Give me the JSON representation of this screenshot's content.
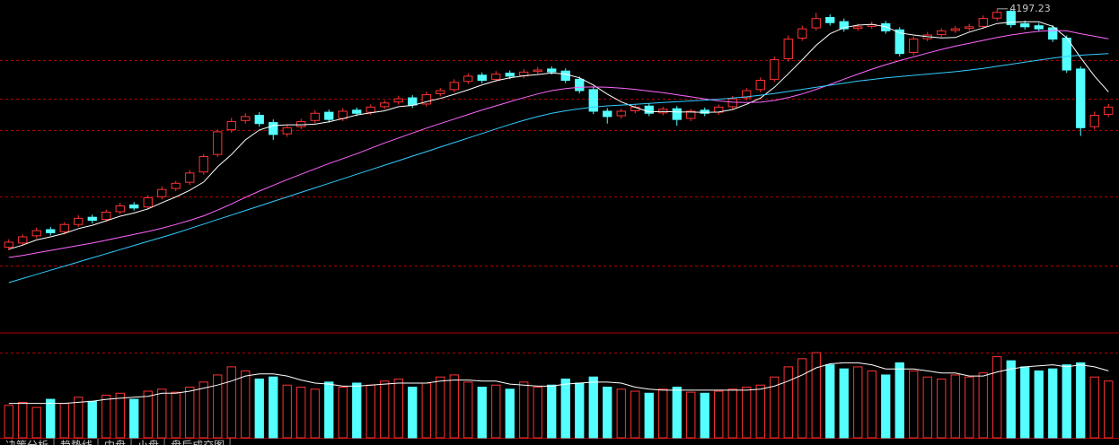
{
  "chart_data": {
    "type": "candlestick",
    "ylim": [
      2650,
      4240
    ],
    "ygrid": [
      3948,
      3761,
      3608,
      3286,
      2951
    ],
    "grid_color": "#b00000",
    "up_color": "#ff3232",
    "down_color": "#54ffff",
    "open": [
      3040,
      3060,
      3095,
      3125,
      3115,
      3150,
      3185,
      3175,
      3212,
      3245,
      3235,
      3285,
      3325,
      3355,
      3405,
      3490,
      3610,
      3655,
      3680,
      3645,
      3590,
      3625,
      3655,
      3695,
      3665,
      3705,
      3695,
      3722,
      3745,
      3765,
      3735,
      3785,
      3805,
      3845,
      3875,
      3855,
      3885,
      3872,
      3893,
      3905,
      3895,
      3855,
      3805,
      3700,
      3678,
      3702,
      3725,
      3692,
      3712,
      3665,
      3705,
      3695,
      3722,
      3765,
      3805,
      3855,
      3955,
      4055,
      4105,
      4155,
      4135,
      4102,
      4112,
      4125,
      4095,
      3985,
      4052,
      4072,
      4092,
      4102,
      4112,
      4152,
      4185,
      4125,
      4115,
      4105,
      4055,
      3905,
      3625,
      3685
    ],
    "high": [
      3078,
      3102,
      3135,
      3138,
      3162,
      3195,
      3198,
      3222,
      3255,
      3258,
      3292,
      3335,
      3362,
      3415,
      3492,
      3612,
      3668,
      3690,
      3695,
      3660,
      3634,
      3663,
      3705,
      3708,
      3715,
      3718,
      3733,
      3752,
      3775,
      3778,
      3795,
      3812,
      3855,
      3884,
      3888,
      3895,
      3898,
      3905,
      3915,
      3918,
      3908,
      3868,
      3818,
      3715,
      3712,
      3735,
      3738,
      3722,
      3725,
      3712,
      3718,
      3732,
      3774,
      3812,
      3864,
      3965,
      4068,
      4115,
      4178,
      4170,
      4150,
      4125,
      4135,
      4138,
      4108,
      4064,
      4085,
      4102,
      4114,
      4124,
      4165,
      4197.23,
      4192,
      4140,
      4128,
      4118,
      4068,
      3918,
      3698,
      3735
    ],
    "low": [
      3025,
      3048,
      3082,
      3096,
      3102,
      3138,
      3155,
      3162,
      3200,
      3218,
      3222,
      3272,
      3312,
      3342,
      3392,
      3478,
      3596,
      3640,
      3625,
      3560,
      3576,
      3612,
      3642,
      3645,
      3652,
      3676,
      3682,
      3710,
      3732,
      3716,
      3722,
      3772,
      3792,
      3832,
      3836,
      3842,
      3856,
      3860,
      3880,
      3878,
      3836,
      3786,
      3686,
      3640,
      3664,
      3690,
      3676,
      3680,
      3630,
      3652,
      3676,
      3682,
      3710,
      3752,
      3792,
      3842,
      3942,
      4042,
      4092,
      4116,
      4086,
      4090,
      4100,
      4076,
      3966,
      3972,
      4040,
      4060,
      4080,
      4090,
      4100,
      4140,
      4106,
      4096,
      4086,
      4036,
      3886,
      3580,
      3612,
      3672
    ],
    "close": [
      3064,
      3090,
      3120,
      3110,
      3150,
      3180,
      3170,
      3210,
      3240,
      3230,
      3280,
      3320,
      3350,
      3400,
      3480,
      3600,
      3650,
      3674,
      3640,
      3587,
      3620,
      3650,
      3690,
      3660,
      3700,
      3690,
      3720,
      3740,
      3760,
      3730,
      3780,
      3800,
      3840,
      3870,
      3850,
      3880,
      3870,
      3890,
      3900,
      3891,
      3850,
      3800,
      3700,
      3674,
      3700,
      3720,
      3690,
      3710,
      3660,
      3700,
      3690,
      3720,
      3760,
      3800,
      3850,
      3950,
      4050,
      4100,
      4150,
      4130,
      4100,
      4110,
      4120,
      4090,
      3980,
      4050,
      4070,
      4090,
      4100,
      4110,
      4150,
      4180,
      4120,
      4110,
      4100,
      4050,
      3900,
      3620,
      3680,
      3720
    ],
    "series": [
      {
        "color": "#ffffff",
        "values": [
          3030,
          3050,
          3075,
          3090,
          3107,
          3130,
          3146,
          3168,
          3190,
          3206,
          3226,
          3256,
          3284,
          3316,
          3356,
          3430,
          3490,
          3561,
          3609,
          3630,
          3634,
          3634,
          3637,
          3649,
          3664,
          3682,
          3692,
          3702,
          3722,
          3728,
          3746,
          3762,
          3782,
          3804,
          3828,
          3848,
          3862,
          3872,
          3878,
          3886,
          3880,
          3862,
          3827,
          3783,
          3745,
          3719,
          3697,
          3699,
          3697,
          3696,
          3694,
          3696,
          3708,
          3734,
          3764,
          3816,
          3882,
          3950,
          4020,
          4076,
          4106,
          4118,
          4122,
          4110,
          4080,
          4070,
          4062,
          4056,
          4058,
          4084,
          4104,
          4126,
          4132,
          4134,
          4134,
          4112,
          4056,
          3960,
          3870,
          3794
        ]
      },
      {
        "color": "#ff66ff",
        "values": [
          2990,
          3000,
          3012,
          3024,
          3036,
          3048,
          3060,
          3074,
          3088,
          3102,
          3116,
          3132,
          3150,
          3170,
          3192,
          3220,
          3250,
          3282,
          3312,
          3340,
          3368,
          3394,
          3420,
          3446,
          3470,
          3494,
          3520,
          3546,
          3570,
          3594,
          3618,
          3640,
          3662,
          3684,
          3706,
          3726,
          3746,
          3766,
          3784,
          3800,
          3810,
          3816,
          3818,
          3816,
          3812,
          3806,
          3798,
          3790,
          3780,
          3770,
          3760,
          3750,
          3744,
          3742,
          3744,
          3752,
          3766,
          3784,
          3806,
          3830,
          3856,
          3880,
          3904,
          3926,
          3946,
          3964,
          3982,
          4000,
          4016,
          4030,
          4044,
          4058,
          4070,
          4080,
          4088,
          4092,
          4090,
          4076,
          4064,
          4052
        ]
      },
      {
        "color": "#33ccff",
        "values": [
          2868,
          2888,
          2908,
          2928,
          2948,
          2968,
          2988,
          3008,
          3028,
          3048,
          3068,
          3088,
          3108,
          3130,
          3152,
          3174,
          3196,
          3218,
          3240,
          3262,
          3284,
          3306,
          3328,
          3350,
          3372,
          3394,
          3416,
          3438,
          3460,
          3482,
          3504,
          3526,
          3548,
          3570,
          3592,
          3614,
          3636,
          3656,
          3674,
          3690,
          3702,
          3712,
          3720,
          3726,
          3730,
          3734,
          3738,
          3742,
          3746,
          3750,
          3754,
          3758,
          3764,
          3770,
          3778,
          3786,
          3796,
          3806,
          3816,
          3826,
          3836,
          3846,
          3854,
          3862,
          3868,
          3874,
          3880,
          3886,
          3892,
          3900,
          3908,
          3918,
          3928,
          3938,
          3948,
          3958,
          3966,
          3972,
          3976,
          3980
        ]
      }
    ],
    "vlim": [
      0,
      100
    ],
    "vgrid": [
      84
    ],
    "volume": [
      32,
      35,
      30,
      38,
      34,
      40,
      36,
      42,
      44,
      38,
      46,
      48,
      45,
      50,
      55,
      62,
      70,
      66,
      58,
      60,
      52,
      50,
      48,
      55,
      50,
      54,
      52,
      56,
      58,
      50,
      54,
      60,
      62,
      55,
      50,
      52,
      48,
      55,
      50,
      52,
      58,
      54,
      60,
      50,
      48,
      46,
      44,
      48,
      50,
      45,
      44,
      46,
      48,
      50,
      52,
      60,
      70,
      78,
      84,
      72,
      68,
      70,
      66,
      62,
      74,
      66,
      60,
      58,
      62,
      60,
      64,
      80,
      76,
      70,
      66,
      68,
      72,
      74,
      60,
      56
    ],
    "volume_ma": {
      "color": "#ffffff",
      "values": [
        34,
        34,
        34,
        34,
        34,
        35,
        36,
        38,
        39,
        40,
        41,
        44,
        44,
        46,
        49,
        52,
        56,
        61,
        63,
        63,
        61,
        57,
        54,
        53,
        51,
        51,
        52,
        53,
        54,
        54,
        54,
        56,
        57,
        57,
        56,
        56,
        53,
        52,
        51,
        51,
        53,
        54,
        55,
        55,
        54,
        50,
        48,
        47,
        47,
        47,
        47,
        47,
        47,
        47,
        48,
        51,
        56,
        62,
        69,
        73,
        74,
        74,
        72,
        68,
        68,
        68,
        66,
        64,
        64,
        61,
        61,
        65,
        68,
        70,
        71,
        72,
        70,
        72,
        70,
        66
      ]
    },
    "annotation_index": 71
  },
  "tabs": [
    "决策分析",
    "趋势线",
    "中盘",
    "小盘",
    "盘后成交图"
  ]
}
